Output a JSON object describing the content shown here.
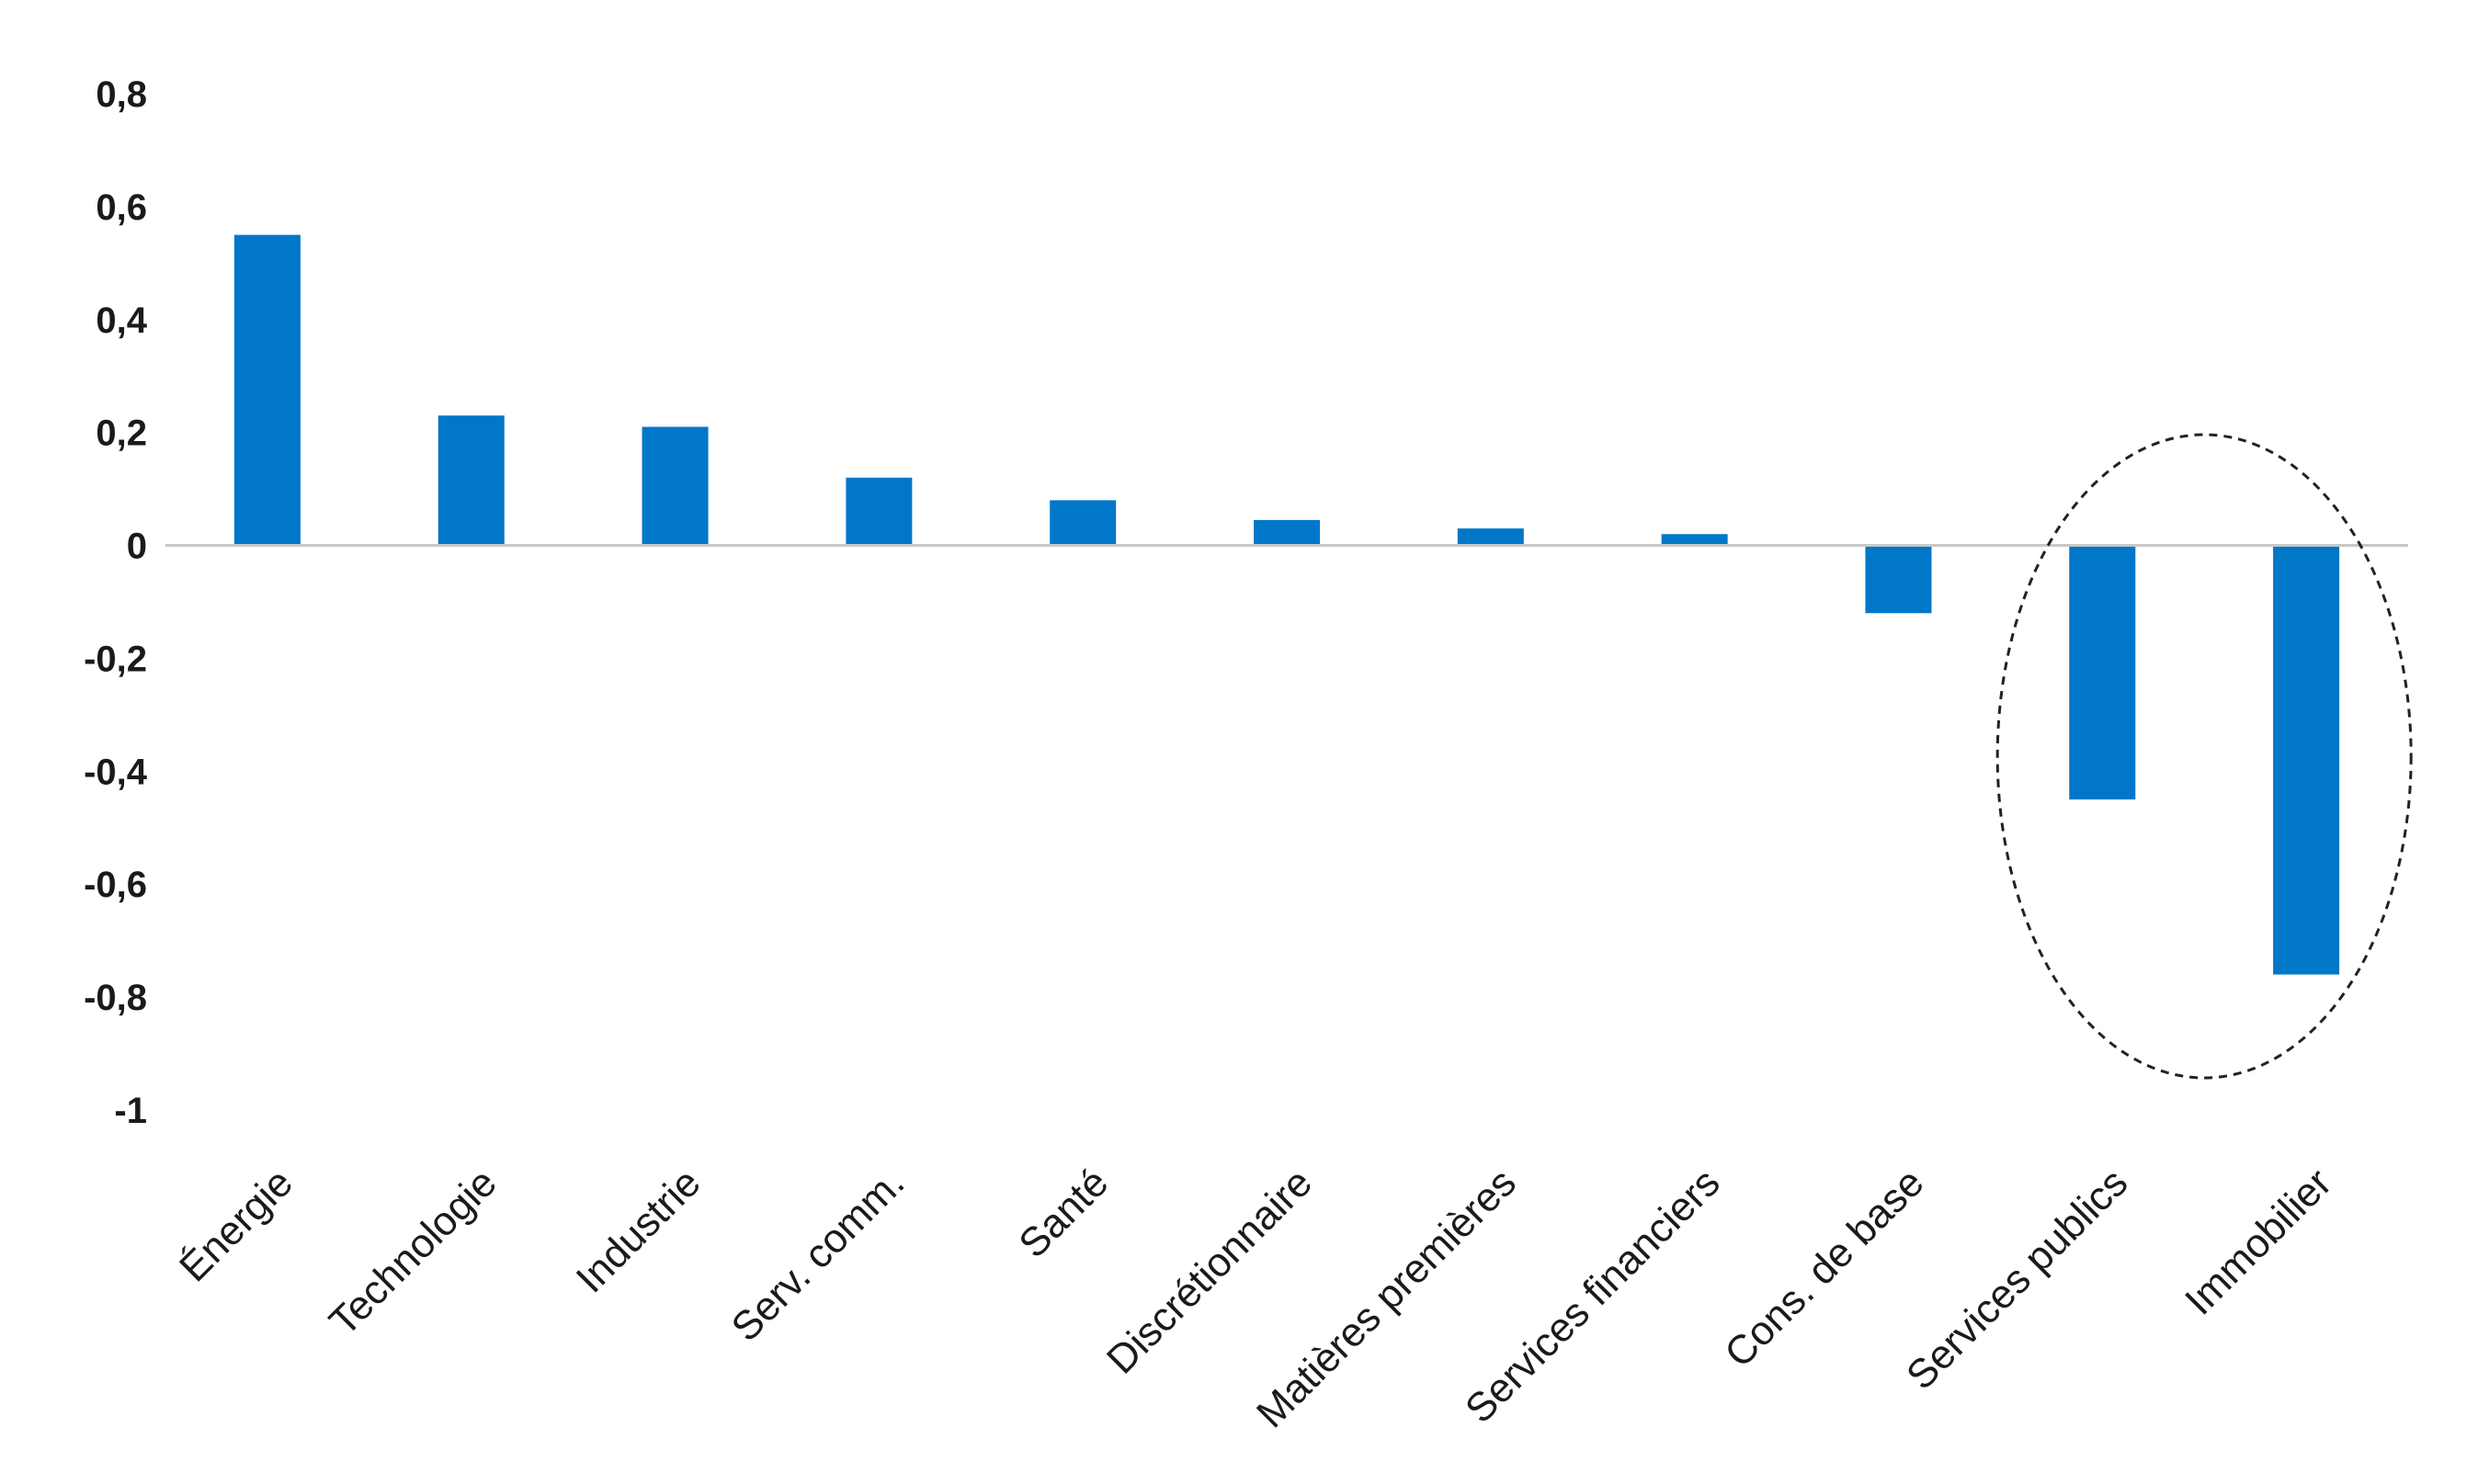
{
  "chart_data": {
    "type": "bar",
    "title": "",
    "xlabel": "",
    "ylabel": "",
    "categories": [
      "Énergie",
      "Technologie",
      "Industrie",
      "Serv. comm.",
      "Santé",
      "Discrétionnaire",
      "Matières premières",
      "Services financiers",
      "Cons. de base",
      "Services publics",
      "Immobilier"
    ],
    "values": [
      0.55,
      0.23,
      0.21,
      0.12,
      0.08,
      0.045,
      0.03,
      0.02,
      -0.12,
      -0.45,
      -0.76
    ],
    "ylim": [
      -1,
      0.8
    ],
    "yticks": [
      "0,8",
      "0,6",
      "0,4",
      "0,2",
      "0",
      "-0,2",
      "-0,4",
      "-0,6",
      "-0,8",
      "-1"
    ],
    "bar_color": "#0077c8",
    "zero_line_color": "#c8c8c8",
    "annotation": "dashed ellipse highlighting Services publics and Immobilier",
    "grid": false,
    "legend": "none"
  }
}
